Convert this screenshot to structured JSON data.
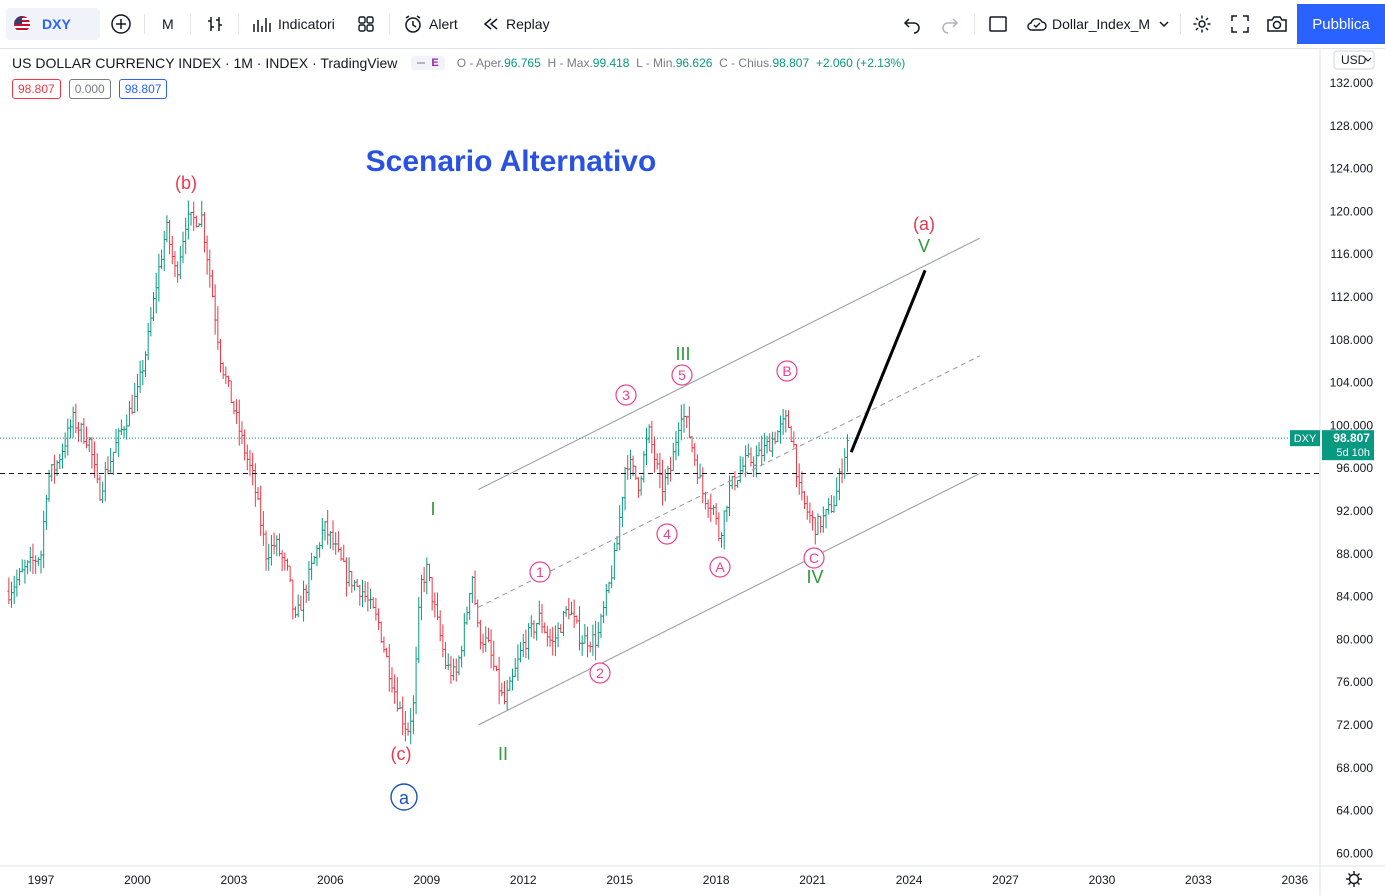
{
  "toolbar": {
    "symbol": "DXY",
    "interval": "M",
    "indicators": "Indicatori",
    "alert": "Alert",
    "replay": "Replay",
    "layout_name": "Dollar_Index_M",
    "publish": "Pubblica"
  },
  "legend": {
    "title": "US DOLLAR CURRENCY INDEX · 1M · INDEX · TradingView",
    "badge": "E",
    "o_label": "O - Aper.",
    "o": "96.765",
    "h_label": "H - Max.",
    "h": "99.418",
    "l_label": "L - Min.",
    "l": "96.626",
    "c_label": "C - Chius.",
    "c": "98.807",
    "change": "+2.060 (+2.13%)"
  },
  "price_boxes": {
    "bid": "98.807",
    "spread": "0.000",
    "ask": "98.807"
  },
  "currency": "USD",
  "last_price": {
    "symbol": "DXY",
    "price": "98.807",
    "countdown": "5d 10h"
  },
  "colors": {
    "up": "#089981",
    "down": "#f23645",
    "wave_red": "#e8384f",
    "wave_pink": "#e84393",
    "wave_green": "#2e9a3a",
    "wave_blue": "#1c4fbd",
    "accent": "#2962ff"
  },
  "annotations": {
    "scenario": "Scenario Alternativo",
    "b": "(b)",
    "c": "(c)",
    "a_red": "(a)",
    "a_blue": "a",
    "I": "I",
    "II": "II",
    "III": "III",
    "IV": "IV",
    "V": "V",
    "c1": "1",
    "c2": "2",
    "c3": "3",
    "c4": "4",
    "c5": "5",
    "cA": "A",
    "cB": "B",
    "cC": "C"
  },
  "chart_data": {
    "type": "line",
    "title": "US DOLLAR CURRENCY INDEX",
    "xlabel": "",
    "ylabel": "",
    "ylim": [
      58,
      134
    ],
    "xlim": [
      1996.0,
      2036.8
    ],
    "y_ticks": [
      132,
      128,
      124,
      120,
      116,
      112,
      108,
      104,
      100,
      96,
      92,
      88,
      84,
      80,
      76,
      72,
      68,
      64,
      60
    ],
    "x_ticks": [
      "1997",
      "2000",
      "2003",
      "2006",
      "2009",
      "2012",
      "2015",
      "2018",
      "2021",
      "2024",
      "2027",
      "2030",
      "2033",
      "2036"
    ],
    "grid": false,
    "series": [
      {
        "values": [
          [
            1996.0,
            84.5
          ],
          [
            1996.5,
            86.5
          ],
          [
            1997.0,
            88.0
          ],
          [
            1997.2,
            95.0
          ],
          [
            1997.5,
            96.5
          ],
          [
            1998.0,
            100.5
          ],
          [
            1998.5,
            98.5
          ],
          [
            1998.8,
            93.5
          ],
          [
            1999.0,
            95.5
          ],
          [
            1999.5,
            99.5
          ],
          [
            2000.0,
            103.0
          ],
          [
            2000.3,
            107.5
          ],
          [
            2000.6,
            113.5
          ],
          [
            2000.9,
            118.5
          ],
          [
            2001.2,
            114.0
          ],
          [
            2001.5,
            119.0
          ],
          [
            2002.0,
            119.5
          ],
          [
            2002.3,
            113.0
          ],
          [
            2002.6,
            106.0
          ],
          [
            2003.0,
            101.5
          ],
          [
            2003.3,
            98.0
          ],
          [
            2003.6,
            95.0
          ],
          [
            2004.0,
            88.0
          ],
          [
            2004.3,
            89.0
          ],
          [
            2004.7,
            86.0
          ],
          [
            2004.9,
            81.5
          ],
          [
            2005.3,
            85.5
          ],
          [
            2005.8,
            90.5
          ],
          [
            2006.0,
            89.5
          ],
          [
            2006.5,
            86.0
          ],
          [
            2007.0,
            84.5
          ],
          [
            2007.5,
            81.5
          ],
          [
            2007.8,
            77.5
          ],
          [
            2008.2,
            73.0
          ],
          [
            2008.4,
            71.5
          ],
          [
            2008.6,
            74.0
          ],
          [
            2008.8,
            85.0
          ],
          [
            2009.0,
            86.5
          ],
          [
            2009.3,
            82.0
          ],
          [
            2009.6,
            77.5
          ],
          [
            2009.9,
            76.5
          ],
          [
            2010.2,
            81.5
          ],
          [
            2010.4,
            86.5
          ],
          [
            2010.6,
            80.5
          ],
          [
            2010.9,
            79.5
          ],
          [
            2011.2,
            76.0
          ],
          [
            2011.4,
            74.0
          ],
          [
            2011.6,
            75.5
          ],
          [
            2012.0,
            79.5
          ],
          [
            2012.5,
            82.0
          ],
          [
            2012.9,
            79.5
          ],
          [
            2013.4,
            83.0
          ],
          [
            2013.8,
            80.0
          ],
          [
            2014.3,
            80.0
          ],
          [
            2014.6,
            84.0
          ],
          [
            2014.9,
            88.5
          ],
          [
            2015.2,
            97.0
          ],
          [
            2015.6,
            94.5
          ],
          [
            2015.9,
            99.5
          ],
          [
            2016.3,
            94.0
          ],
          [
            2016.6,
            96.0
          ],
          [
            2016.9,
            101.5
          ],
          [
            2017.1,
            100.0
          ],
          [
            2017.6,
            93.5
          ],
          [
            2017.9,
            92.5
          ],
          [
            2018.1,
            89.5
          ],
          [
            2018.4,
            94.0
          ],
          [
            2018.9,
            96.5
          ],
          [
            2019.3,
            97.0
          ],
          [
            2019.7,
            98.5
          ],
          [
            2020.2,
            100.5
          ],
          [
            2020.4,
            98.5
          ],
          [
            2020.6,
            93.5
          ],
          [
            2020.9,
            91.5
          ],
          [
            2021.1,
            90.5
          ],
          [
            2021.4,
            91.5
          ],
          [
            2021.7,
            93.0
          ],
          [
            2021.9,
            96.0
          ],
          [
            2022.1,
            98.8
          ]
        ]
      }
    ],
    "projection": [
      [
        2022.2,
        97.5
      ],
      [
        2024.5,
        114.5
      ]
    ],
    "channel_lines": [
      {
        "style": "solid",
        "from": [
          2010.6,
          94.0
        ],
        "to": [
          2026.2,
          117.5
        ]
      },
      {
        "style": "dashed",
        "from": [
          2010.6,
          83.0
        ],
        "to": [
          2026.2,
          106.5
        ]
      },
      {
        "style": "solid",
        "from": [
          2010.6,
          72.0
        ],
        "to": [
          2026.2,
          95.5
        ]
      }
    ],
    "hline": 95.5,
    "last_price_line": 98.807
  }
}
